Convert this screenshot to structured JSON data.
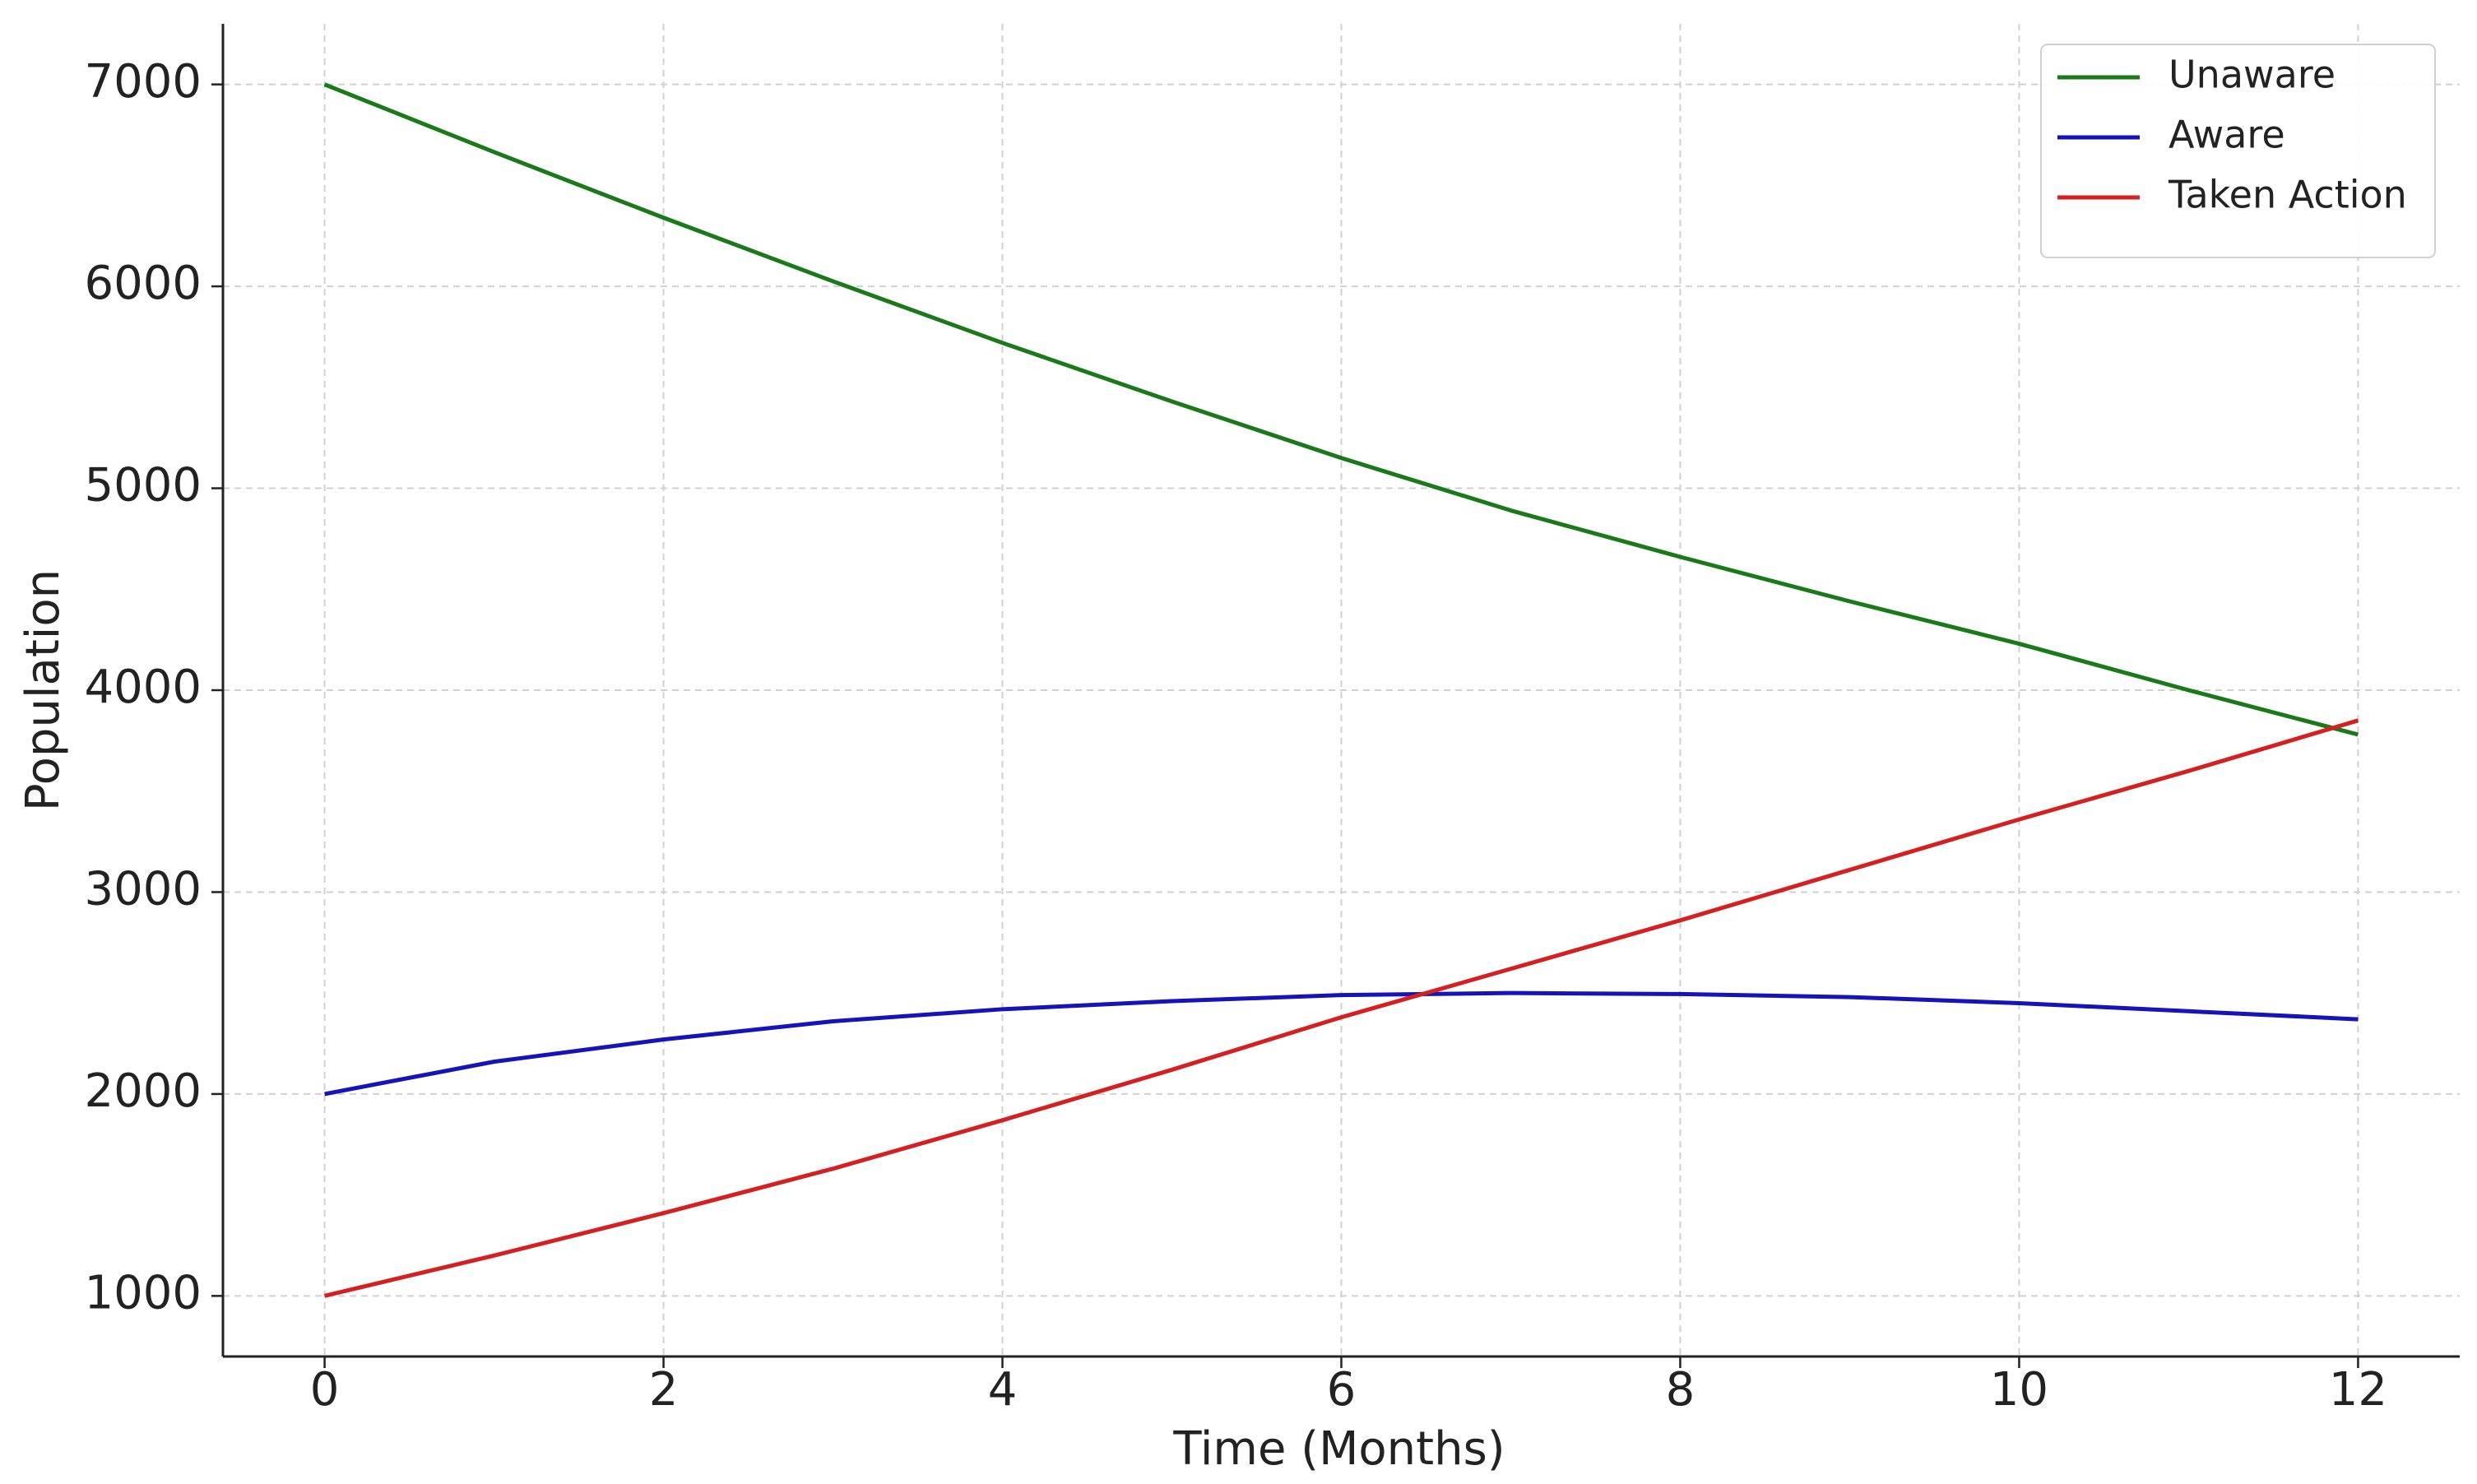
{
  "chart_data": {
    "type": "line",
    "x_label": "Time (Months)",
    "y_label": "Population",
    "x": [
      0,
      1,
      2,
      3,
      4,
      5,
      6,
      7,
      8,
      9,
      10,
      11,
      12
    ],
    "series": [
      {
        "name": "Unaware",
        "color": "#1a7a1a",
        "values": [
          7000,
          6665,
          6340,
          6025,
          5720,
          5430,
          5150,
          4890,
          4660,
          4440,
          4230,
          4000,
          3780
        ]
      },
      {
        "name": "Aware",
        "color": "#1414b8",
        "values": [
          2000,
          2160,
          2270,
          2360,
          2420,
          2460,
          2490,
          2500,
          2495,
          2480,
          2450,
          2410,
          2370
        ]
      },
      {
        "name": "Taken Action",
        "color": "#d42020",
        "values": [
          1000,
          1200,
          1410,
          1630,
          1870,
          2120,
          2380,
          2620,
          2860,
          3110,
          3360,
          3600,
          3850
        ]
      }
    ],
    "xlim": [
      -0.6,
      12.6
    ],
    "ylim": [
      700,
      7300
    ],
    "xticks": [
      0,
      2,
      4,
      6,
      8,
      10,
      12
    ],
    "yticks": [
      1000,
      2000,
      3000,
      4000,
      5000,
      6000,
      7000
    ],
    "grid": true,
    "legend": "upper right"
  }
}
